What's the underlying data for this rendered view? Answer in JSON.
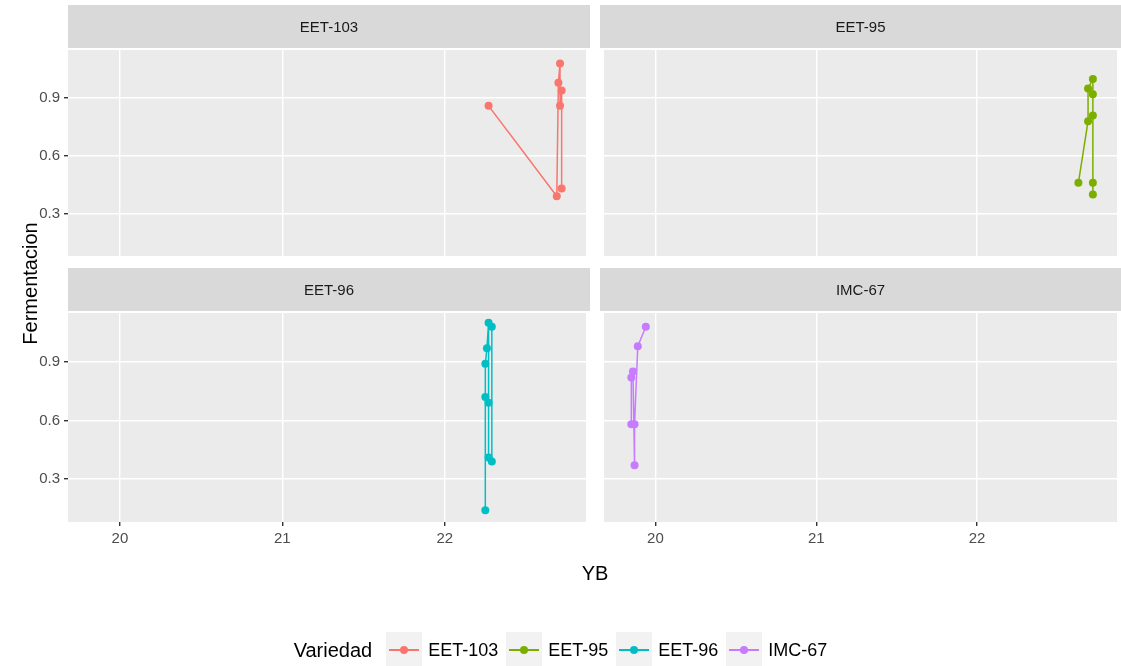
{
  "chart_data": [
    {
      "type": "line",
      "title": "EET-103",
      "ylabel": "Fermentacion",
      "legend": "bottom",
      "legend_title": "Variedad",
      "marker": "circle",
      "grid": true,
      "tick_labels": "y",
      "xlim": [
        19.68,
        22.87
      ],
      "ylim": [
        0.08,
        1.15
      ],
      "xticks": [
        20,
        21,
        22
      ],
      "yticks": [
        0.3,
        0.6,
        0.9
      ],
      "series": [
        {
          "name": "EET-103",
          "color": "#f8766d",
          "x": [
            22.27,
            22.69,
            22.7,
            22.71,
            22.71,
            22.72,
            22.72
          ],
          "values": [
            0.86,
            0.39,
            0.98,
            1.08,
            0.86,
            0.94,
            0.43
          ]
        }
      ]
    },
    {
      "type": "line",
      "title": "EET-95",
      "legend": "bottom",
      "marker": "circle",
      "grid": true,
      "tick_labels": false,
      "xlim": [
        19.68,
        22.87
      ],
      "ylim": [
        0.08,
        1.15
      ],
      "xticks": [
        20,
        21,
        22
      ],
      "yticks": [
        0.3,
        0.6,
        0.9
      ],
      "series": [
        {
          "name": "EET-95",
          "color": "#7cae00",
          "x": [
            22.63,
            22.69,
            22.69,
            22.72,
            22.72,
            22.72,
            22.72,
            22.72
          ],
          "values": [
            0.46,
            0.78,
            0.95,
            1.0,
            0.92,
            0.81,
            0.46,
            0.4
          ]
        }
      ]
    },
    {
      "type": "line",
      "title": "EET-96",
      "xlabel": "YB",
      "legend": "bottom",
      "marker": "circle",
      "grid": true,
      "xlim": [
        19.68,
        22.87
      ],
      "ylim": [
        0.08,
        1.15
      ],
      "xticks": [
        20,
        21,
        22
      ],
      "yticks": [
        0.3,
        0.6,
        0.9
      ],
      "series": [
        {
          "name": "EET-96",
          "color": "#00bfc4",
          "x": [
            22.25,
            22.25,
            22.25,
            22.26,
            22.27,
            22.27,
            22.27,
            22.29,
            22.29
          ],
          "values": [
            0.14,
            0.72,
            0.89,
            0.97,
            1.1,
            0.69,
            0.41,
            0.39,
            1.08
          ]
        }
      ]
    },
    {
      "type": "line",
      "title": "IMC-67",
      "legend": "bottom",
      "marker": "circle",
      "grid": true,
      "tick_labels": "x",
      "xlim": [
        19.68,
        22.87
      ],
      "ylim": [
        0.08,
        1.15
      ],
      "xticks": [
        20,
        21,
        22
      ],
      "yticks": [
        0.3,
        0.6,
        0.9
      ],
      "series": [
        {
          "name": "IMC-67",
          "color": "#c77cff",
          "x": [
            19.85,
            19.85,
            19.86,
            19.87,
            19.87,
            19.89,
            19.94
          ],
          "values": [
            0.58,
            0.82,
            0.85,
            0.37,
            0.58,
            0.98,
            1.08
          ]
        }
      ]
    }
  ]
}
